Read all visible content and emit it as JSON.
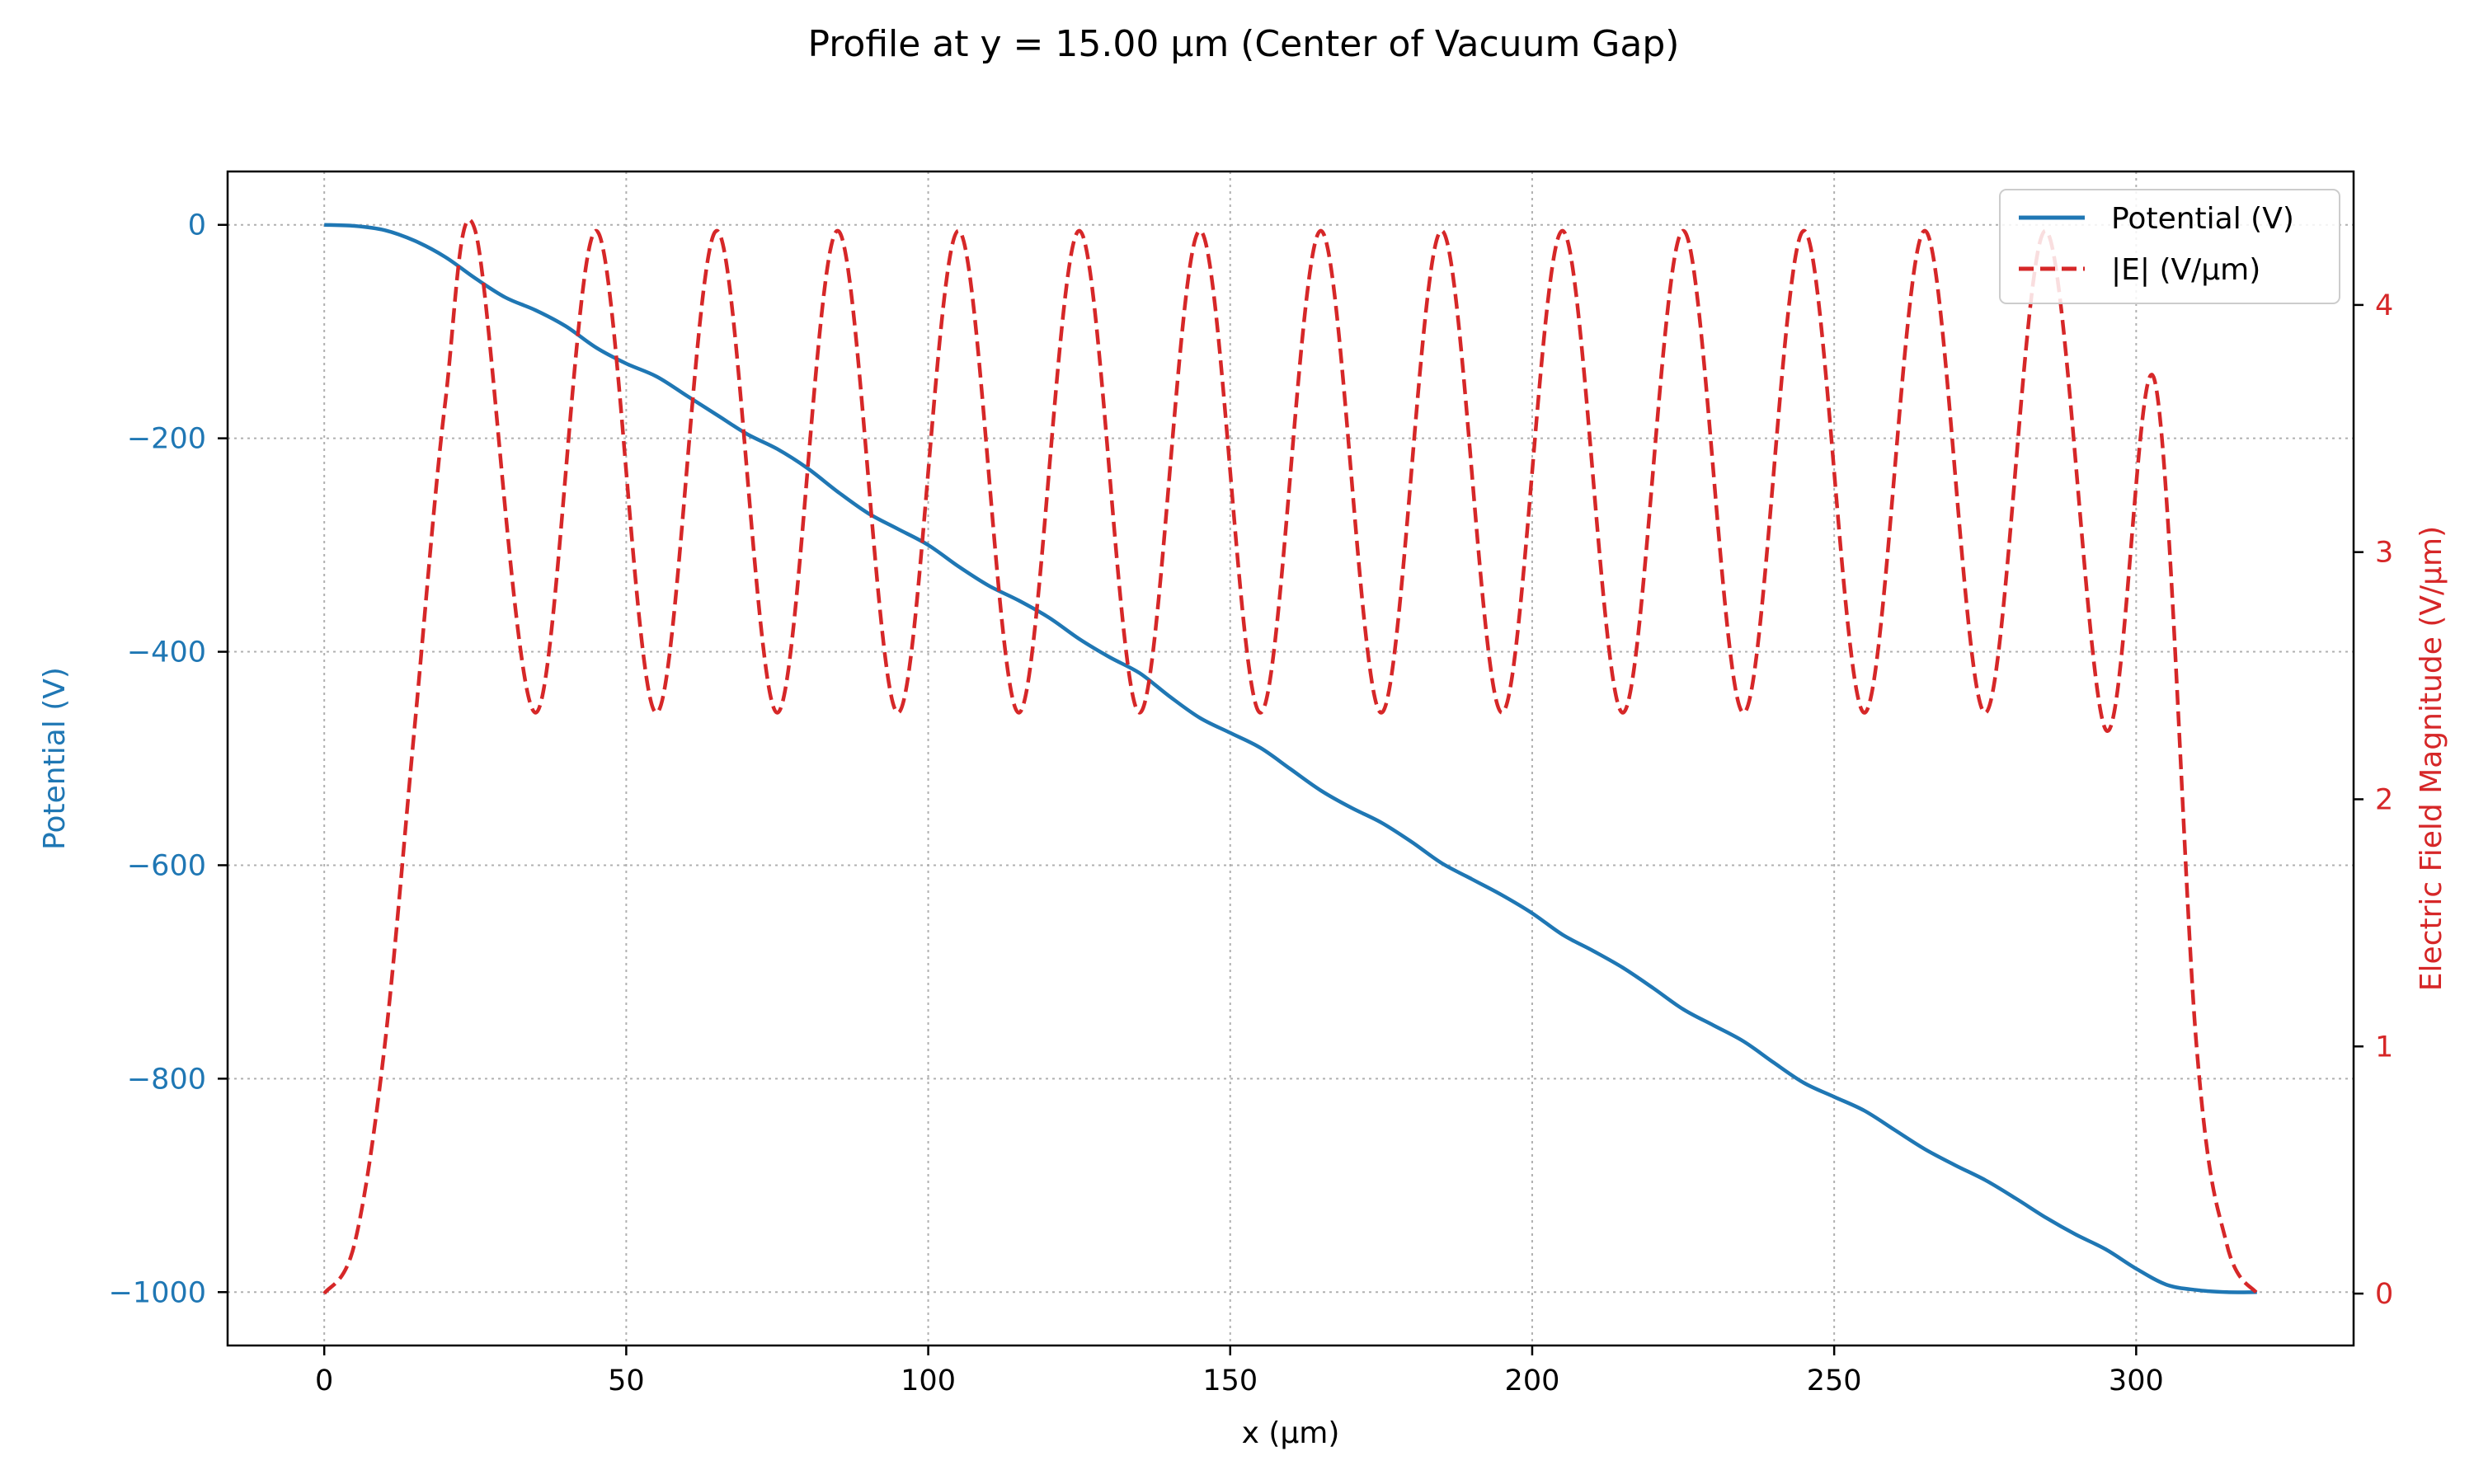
{
  "chart_data": {
    "type": "line",
    "title": "Profile at y = 15.00 µm (Center of Vacuum Gap)",
    "xlabel": "x (µm)",
    "ylabel_left": "Potential (V)",
    "ylabel_right": "Electric Field Magnitude (V/µm)",
    "xlim": [
      -16,
      336
    ],
    "ylim_left": [
      -1050,
      50
    ],
    "ylim_right": [
      -0.21,
      4.54
    ],
    "xticks": [
      0,
      50,
      100,
      150,
      200,
      250,
      300
    ],
    "xtick_labels": [
      "0",
      "50",
      "100",
      "150",
      "200",
      "250",
      "300"
    ],
    "yticks_left": [
      0,
      -200,
      -400,
      -600,
      -800,
      -1000
    ],
    "ytick_labels_left": [
      "0",
      "−200",
      "−400",
      "−600",
      "−800",
      "−1000"
    ],
    "yticks_right": [
      0,
      1,
      2,
      3,
      4
    ],
    "ytick_labels_right": [
      "0",
      "1",
      "2",
      "3",
      "4"
    ],
    "grid": true,
    "legend_position": "top-right",
    "colors": {
      "potential": "#1f77b4",
      "efield": "#d62728",
      "grid": "#b0b0b0",
      "axis": "#000000"
    },
    "series": [
      {
        "name": "Potential (V)",
        "axis": "left",
        "style": "solid",
        "x": [
          0,
          5,
          10,
          15,
          20,
          25,
          30,
          35,
          40,
          45,
          50,
          55,
          60,
          65,
          70,
          75,
          80,
          85,
          90,
          95,
          100,
          105,
          110,
          115,
          120,
          125,
          130,
          135,
          140,
          145,
          150,
          155,
          160,
          165,
          170,
          175,
          180,
          185,
          190,
          195,
          200,
          205,
          210,
          215,
          220,
          225,
          230,
          235,
          240,
          245,
          250,
          255,
          260,
          265,
          270,
          275,
          280,
          285,
          290,
          295,
          300,
          305,
          310,
          315,
          320
        ],
        "values": [
          0,
          -1,
          -5,
          -15,
          -30,
          -50,
          -68,
          -80,
          -95,
          -115,
          -130,
          -142,
          -160,
          -178,
          -196,
          -210,
          -228,
          -250,
          -270,
          -285,
          -300,
          -320,
          -338,
          -352,
          -368,
          -388,
          -405,
          -420,
          -442,
          -462,
          -476,
          -490,
          -510,
          -530,
          -546,
          -560,
          -578,
          -598,
          -613,
          -628,
          -645,
          -665,
          -680,
          -696,
          -715,
          -735,
          -750,
          -765,
          -785,
          -804,
          -817,
          -830,
          -848,
          -866,
          -881,
          -895,
          -912,
          -930,
          -946,
          -960,
          -978,
          -993,
          -998,
          -1000,
          -1000
        ]
      },
      {
        "name": "|E| (V/µm)",
        "axis": "right",
        "style": "dashed",
        "x": [
          0,
          5,
          10,
          15,
          20,
          25,
          35,
          45,
          55,
          65,
          75,
          85,
          95,
          105,
          115,
          125,
          135,
          145,
          155,
          165,
          175,
          185,
          195,
          205,
          215,
          225,
          235,
          245,
          255,
          265,
          275,
          285,
          295,
          303,
          310,
          315,
          320
        ],
        "values": [
          0,
          0.2,
          1.0,
          2.3,
          3.6,
          4.3,
          2.35,
          4.3,
          2.35,
          4.3,
          2.35,
          4.3,
          2.35,
          4.3,
          2.35,
          4.3,
          2.35,
          4.3,
          2.35,
          4.3,
          2.35,
          4.3,
          2.35,
          4.3,
          2.35,
          4.3,
          2.35,
          4.3,
          2.35,
          4.3,
          2.35,
          4.3,
          2.28,
          3.7,
          1.0,
          0.2,
          0
        ]
      }
    ]
  }
}
